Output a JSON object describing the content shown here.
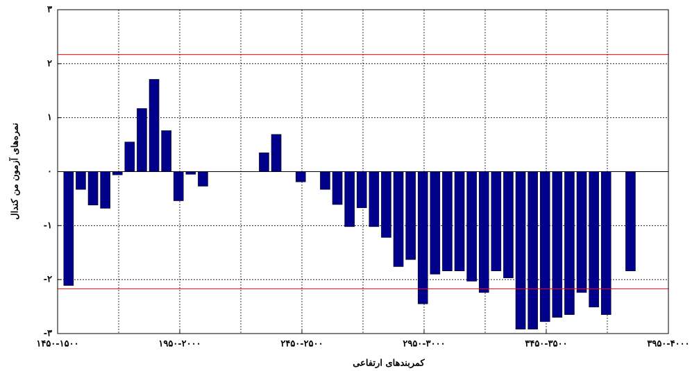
{
  "chart_data": {
    "type": "bar",
    "xlabel": "کمربندهای ارتفاعی",
    "ylabel": "نمره‌های آزمون من کندال",
    "x": [
      0.9,
      1.9,
      2.9,
      3.9,
      4.9,
      5.9,
      6.9,
      7.9,
      8.9,
      9.9,
      10.9,
      11.9,
      16.9,
      17.9,
      19.9,
      21.9,
      22.9,
      23.9,
      24.9,
      25.9,
      26.9,
      27.9,
      28.9,
      29.9,
      30.9,
      31.9,
      32.9,
      33.9,
      34.9,
      35.9,
      36.9,
      37.9,
      38.9,
      39.9,
      40.9,
      41.9,
      42.9,
      43.9,
      44.9,
      46.9
    ],
    "values": [
      -2.11,
      -0.33,
      -0.62,
      -0.68,
      -0.06,
      0.55,
      1.17,
      1.71,
      0.76,
      -0.54,
      -0.05,
      -0.27,
      0.35,
      0.69,
      -0.19,
      -0.33,
      -0.61,
      -1.02,
      -0.67,
      -1.02,
      -1.22,
      -1.76,
      -1.63,
      -2.45,
      -1.9,
      -1.84,
      -1.84,
      -2.03,
      -2.24,
      -1.84,
      -1.97,
      -2.92,
      -2.92,
      -2.78,
      -2.7,
      -2.65,
      -2.24,
      -2.51,
      -2.65,
      -1.84
    ],
    "color": "#00008b",
    "xlim": [
      0,
      50
    ],
    "xticks": [
      {
        "value": 0,
        "label": "۱۴۵۰-۱۵۰۰"
      },
      {
        "value": 10,
        "label": "۱۹۵۰-۲۰۰۰"
      },
      {
        "value": 20,
        "label": "۲۴۵۰-۲۵۰۰"
      },
      {
        "value": 30,
        "label": "۲۹۵۰-۳۰۰۰"
      },
      {
        "value": 40,
        "label": "۳۴۵۰-۳۵۰۰"
      },
      {
        "value": 50,
        "label": "۳۹۵۰-۴۰۰۰"
      }
    ],
    "xminor": [
      5,
      15,
      25,
      35,
      45
    ],
    "ylim": [
      -3,
      3
    ],
    "yticks": [
      {
        "value": -3,
        "label": "-۳"
      },
      {
        "value": -2,
        "label": "-۲"
      },
      {
        "value": -1,
        "label": "-۱"
      },
      {
        "value": 0,
        "label": "٠"
      },
      {
        "value": 1,
        "label": "۱"
      },
      {
        "value": 2,
        "label": "۲"
      },
      {
        "value": 3,
        "label": "۳"
      }
    ],
    "reference_lines": [
      2.17,
      -2.17
    ],
    "reference_color": "#ff0000",
    "grid": true
  }
}
